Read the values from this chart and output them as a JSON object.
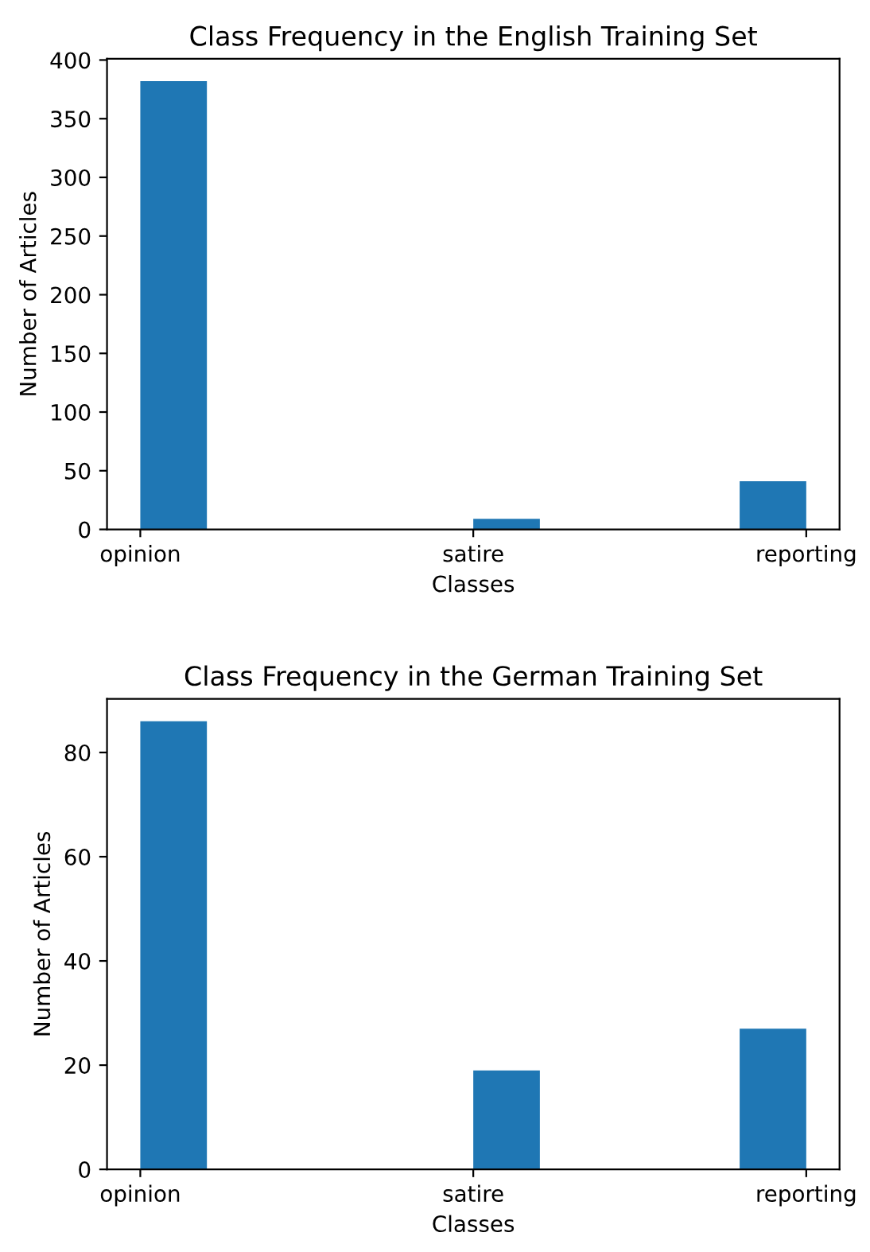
{
  "chart_data": [
    {
      "type": "bar",
      "title": "Class Frequency in the English Training Set",
      "xlabel": "Classes",
      "ylabel": "Number of Articles",
      "categories": [
        "opinion",
        "satire",
        "reporting"
      ],
      "values": [
        382,
        9,
        41
      ],
      "color": "#1f77b4",
      "ylim": [
        0,
        401
      ],
      "yticks": [
        0,
        50,
        100,
        150,
        200,
        250,
        300,
        350,
        400
      ]
    },
    {
      "type": "bar",
      "title": "Class Frequency in the German Training Set",
      "xlabel": "Classes",
      "ylabel": "Number of Articles",
      "categories": [
        "opinion",
        "satire",
        "reporting"
      ],
      "values": [
        86,
        19,
        27
      ],
      "color": "#1f77b4",
      "ylim": [
        0,
        90.3
      ],
      "yticks": [
        0,
        20,
        40,
        60,
        80
      ]
    }
  ]
}
